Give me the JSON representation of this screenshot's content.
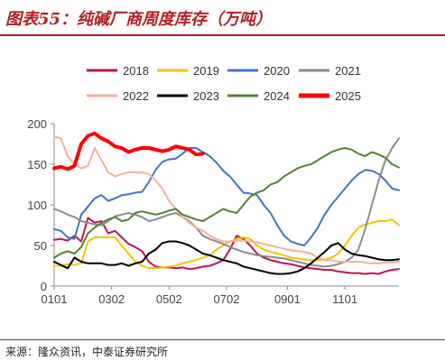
{
  "header": {
    "title": "图表55：纯碱厂商周度库存（万吨）"
  },
  "footer": {
    "source": "来源：隆众资讯，中泰证券研究所"
  },
  "chart_data": {
    "type": "line",
    "title": "图表55：纯碱厂商周度库存（万吨）",
    "unit": "万吨",
    "xlabel": "",
    "ylabel": "",
    "ylim": [
      0,
      200
    ],
    "yticks": [
      0,
      50,
      100,
      150,
      200
    ],
    "xlim": [
      1,
      52
    ],
    "xticks": [
      {
        "week": 1,
        "label": "0101"
      },
      {
        "week": 9.5,
        "label": "0302"
      },
      {
        "week": 18,
        "label": "0502"
      },
      {
        "week": 26.5,
        "label": "0702"
      },
      {
        "week": 35.5,
        "label": "0901"
      },
      {
        "week": 44,
        "label": "1101"
      }
    ],
    "grid": false,
    "legend": "top",
    "series": [
      {
        "name": "2018",
        "color": "#c0134d",
        "width": 2,
        "values": [
          57,
          58,
          56,
          62,
          55,
          84,
          78,
          80,
          65,
          68,
          60,
          52,
          48,
          43,
          30,
          24,
          23,
          23,
          22,
          23,
          21,
          22,
          24,
          25,
          28,
          32,
          45,
          62,
          58,
          50,
          40,
          35,
          32,
          30,
          28,
          27,
          25,
          23,
          22,
          21,
          20,
          20,
          18,
          17,
          16,
          16,
          15,
          16,
          15,
          18,
          20,
          21
        ]
      },
      {
        "name": "2019",
        "color": "#f5c400",
        "width": 2,
        "values": [
          25,
          25,
          27,
          26,
          28,
          55,
          60,
          60,
          60,
          60,
          50,
          40,
          30,
          25,
          22,
          22,
          23,
          24,
          25,
          28,
          30,
          32,
          35,
          38,
          45,
          50,
          55,
          58,
          60,
          58,
          50,
          45,
          42,
          40,
          38,
          35,
          34,
          33,
          32,
          32,
          33,
          35,
          40,
          50,
          62,
          72,
          76,
          78,
          80,
          80,
          82,
          75
        ]
      },
      {
        "name": "2020",
        "color": "#4472c4",
        "width": 2,
        "values": [
          70,
          68,
          60,
          58,
          88,
          98,
          108,
          112,
          105,
          108,
          112,
          113,
          115,
          116,
          128,
          143,
          153,
          156,
          157,
          163,
          170,
          170,
          165,
          160,
          152,
          142,
          135,
          125,
          115,
          114,
          112,
          100,
          90,
          75,
          62,
          55,
          52,
          50,
          60,
          72,
          88,
          100,
          110,
          120,
          130,
          138,
          143,
          142,
          138,
          130,
          120,
          118
        ]
      },
      {
        "name": "2021",
        "color": "#8c8c8c",
        "width": 2,
        "values": [
          95,
          92,
          88,
          85,
          80,
          78,
          76,
          75,
          80,
          86,
          88,
          90,
          88,
          85,
          80,
          82,
          85,
          88,
          90,
          85,
          80,
          72,
          62,
          58,
          55,
          52,
          48,
          45,
          42,
          40,
          38,
          37,
          36,
          35,
          34,
          32,
          30,
          28,
          26,
          25,
          24,
          25,
          27,
          30,
          35,
          45,
          70,
          100,
          130,
          155,
          170,
          182
        ]
      },
      {
        "name": "2022",
        "color": "#f4b19c",
        "width": 2,
        "values": [
          184,
          182,
          160,
          150,
          145,
          148,
          170,
          155,
          140,
          135,
          138,
          140,
          140,
          140,
          138,
          130,
          120,
          105,
          95,
          85,
          78,
          72,
          68,
          62,
          58,
          55,
          55,
          56,
          56,
          55,
          54,
          52,
          50,
          48,
          46,
          44,
          43,
          42,
          40,
          35,
          32,
          32,
          30,
          30,
          30,
          30,
          29,
          28,
          28,
          29,
          29,
          30
        ]
      },
      {
        "name": "2023",
        "color": "#000000",
        "width": 2,
        "values": [
          30,
          26,
          22,
          35,
          30,
          28,
          28,
          28,
          26,
          26,
          28,
          25,
          28,
          30,
          40,
          45,
          53,
          55,
          55,
          53,
          50,
          45,
          40,
          38,
          35,
          32,
          30,
          28,
          24,
          22,
          20,
          18,
          16,
          15,
          15,
          16,
          18,
          22,
          28,
          35,
          42,
          50,
          53,
          45,
          40,
          38,
          37,
          35,
          33,
          32,
          32,
          33
        ]
      },
      {
        "name": "2024",
        "color": "#548235",
        "width": 2,
        "values": [
          35,
          40,
          43,
          40,
          48,
          65,
          72,
          78,
          82,
          85,
          80,
          82,
          90,
          92,
          90,
          88,
          90,
          93,
          95,
          88,
          85,
          82,
          80,
          85,
          90,
          95,
          92,
          90,
          100,
          110,
          115,
          118,
          125,
          128,
          135,
          140,
          145,
          148,
          150,
          155,
          160,
          165,
          168,
          170,
          168,
          163,
          160,
          165,
          162,
          158,
          150,
          146
        ]
      },
      {
        "name": "2025",
        "color": "#ff0000",
        "width": 4,
        "values": [
          145,
          147,
          144,
          148,
          175,
          185,
          188,
          182,
          178,
          172,
          170,
          165,
          168,
          170,
          170,
          168,
          166,
          168,
          172,
          170,
          168,
          162,
          163,
          null,
          null,
          null,
          null,
          null,
          null,
          null,
          null,
          null,
          null,
          null,
          null,
          null,
          null,
          null,
          null,
          null,
          null,
          null,
          null,
          null,
          null,
          null,
          null,
          null,
          null,
          null,
          null,
          null
        ]
      }
    ]
  }
}
